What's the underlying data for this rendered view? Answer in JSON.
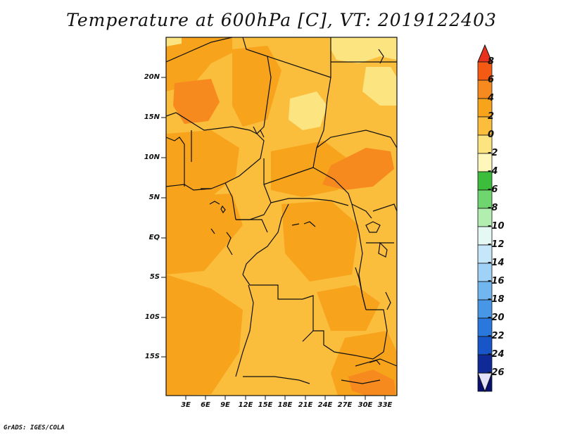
{
  "title": "Temperature at 600hPa [C], VT: 2019122403",
  "credit": "GrADS: IGES/COLA",
  "map": {
    "y_ticks": [
      "20N",
      "15N",
      "10N",
      "5N",
      "EQ",
      "5S",
      "10S",
      "15S"
    ],
    "x_ticks": [
      "3E",
      "6E",
      "9E",
      "12E",
      "15E",
      "18E",
      "21E",
      "24E",
      "27E",
      "30E",
      "33E"
    ]
  },
  "colorbar": {
    "labels": [
      "8",
      "6",
      "4",
      "2",
      "0",
      "-2",
      "-4",
      "-6",
      "-8",
      "-10",
      "-12",
      "-14",
      "-16",
      "-18",
      "-20",
      "-22",
      "-24",
      "-26"
    ],
    "colors": [
      "#e8321e",
      "#f45a14",
      "#f78a1e",
      "#f8a31c",
      "#fbbd3c",
      "#fce580",
      "#fdf7bb",
      "#3cbe3c",
      "#6fd66f",
      "#b2eeb0",
      "#e5f8f4",
      "#c6e6fa",
      "#9fd2f6",
      "#72b6ef",
      "#4896e6",
      "#2a78de",
      "#1855c8",
      "#0f2a96",
      "#071070",
      "#e2e2f8"
    ]
  },
  "field_colors": {
    "band_0_2": "#fce580",
    "band_2_4": "#fbbd3c",
    "band_4_6": "#f8a31c",
    "band_6_8": "#f78a1e"
  }
}
